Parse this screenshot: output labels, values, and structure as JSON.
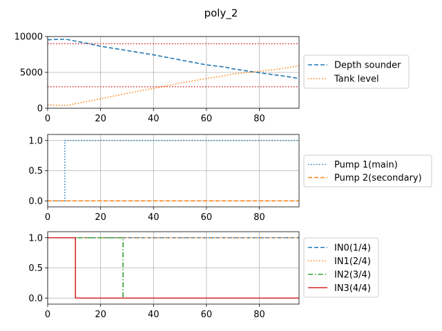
{
  "figure": {
    "title": "poly_2"
  },
  "chart_data": [
    {
      "type": "line",
      "xlim": [
        0,
        95
      ],
      "ylim": [
        0,
        10000
      ],
      "xticks": [
        0,
        20,
        40,
        60,
        80
      ],
      "yticks": [
        0,
        5000,
        10000
      ],
      "grid": true,
      "legend_position": "right",
      "hlines": [
        {
          "y": 9000,
          "color": "#d62728",
          "style": "dotted"
        },
        {
          "y": 3000,
          "color": "#d62728",
          "style": "dotted"
        }
      ],
      "series": [
        {
          "name": "Depth sounder",
          "color": "#1f77b4",
          "style": "dashed",
          "points": [
            [
              0,
              9550
            ],
            [
              3,
              9600
            ],
            [
              7,
              9620
            ],
            [
              10,
              9400
            ],
            [
              15,
              9050
            ],
            [
              20,
              8650
            ],
            [
              30,
              8050
            ],
            [
              40,
              7450
            ],
            [
              50,
              6750
            ],
            [
              60,
              6050
            ],
            [
              67,
              5750
            ],
            [
              70,
              5500
            ],
            [
              80,
              4950
            ],
            [
              90,
              4450
            ],
            [
              95,
              4150
            ]
          ]
        },
        {
          "name": "Tank level",
          "color": "#ff7f0e",
          "style": "dotted",
          "points": [
            [
              0,
              480
            ],
            [
              4,
              420
            ],
            [
              7,
              390
            ],
            [
              10,
              600
            ],
            [
              15,
              950
            ],
            [
              20,
              1320
            ],
            [
              30,
              2080
            ],
            [
              40,
              2780
            ],
            [
              50,
              3500
            ],
            [
              60,
              4150
            ],
            [
              67,
              4550
            ],
            [
              70,
              4780
            ],
            [
              80,
              5150
            ],
            [
              90,
              5600
            ],
            [
              95,
              5950
            ]
          ]
        }
      ]
    },
    {
      "type": "line",
      "xlim": [
        0,
        95
      ],
      "ylim": [
        -0.1,
        1.1
      ],
      "xticks": [
        0,
        20,
        40,
        60,
        80
      ],
      "yticks": [
        "0.0",
        "0.5",
        "1.0"
      ],
      "grid": true,
      "legend_position": "right",
      "series": [
        {
          "name": "Pump 1(main)",
          "color": "#1f77b4",
          "style": "dotted",
          "points": [
            [
              0,
              0
            ],
            [
              6.5,
              0
            ],
            [
              6.5,
              1
            ],
            [
              95,
              1
            ]
          ]
        },
        {
          "name": "Pump 2(secondary)",
          "color": "#ff7f0e",
          "style": "dashed",
          "points": [
            [
              0,
              0
            ],
            [
              95,
              0
            ]
          ]
        }
      ]
    },
    {
      "type": "line",
      "xlim": [
        0,
        95
      ],
      "ylim": [
        -0.1,
        1.1
      ],
      "xticks": [
        0,
        20,
        40,
        60,
        80
      ],
      "yticks": [
        "0.0",
        "0.5",
        "1.0"
      ],
      "grid": true,
      "legend_position": "right",
      "series": [
        {
          "name": "IN0(1/4)",
          "color": "#1f77b4",
          "style": "dashed",
          "points": [
            [
              0,
              1
            ],
            [
              95,
              1
            ]
          ]
        },
        {
          "name": "IN1(2/4)",
          "color": "#ff7f0e",
          "style": "dotted",
          "points": [
            [
              0,
              1
            ],
            [
              95,
              1
            ]
          ]
        },
        {
          "name": "IN2(3/4)",
          "color": "#2ca02c",
          "style": "dashdot",
          "points": [
            [
              0,
              1
            ],
            [
              28.5,
              1
            ],
            [
              28.5,
              0
            ],
            [
              95,
              0
            ]
          ]
        },
        {
          "name": "IN3(4/4)",
          "color": "#d62728",
          "style": "solid",
          "points": [
            [
              0,
              1
            ],
            [
              10.5,
              1
            ],
            [
              10.5,
              0
            ],
            [
              95,
              0
            ]
          ]
        }
      ]
    }
  ]
}
